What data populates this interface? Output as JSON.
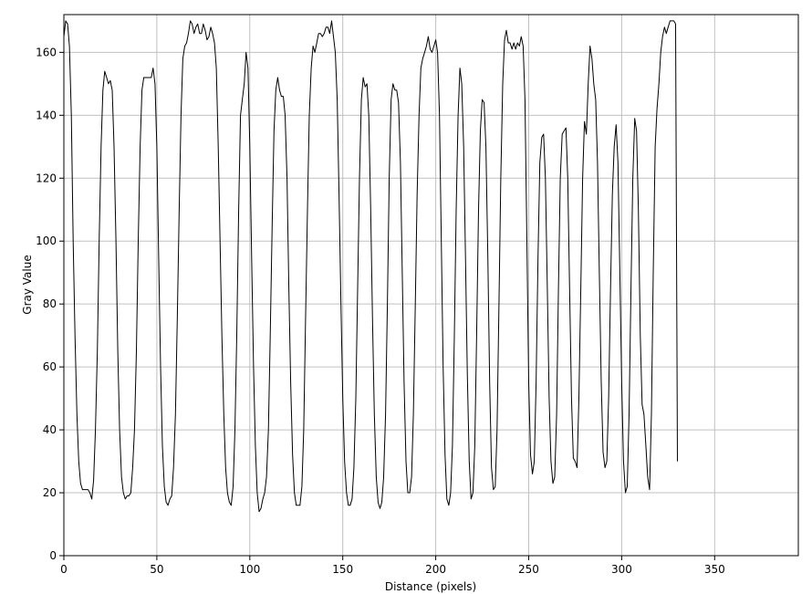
{
  "chart_data": {
    "type": "line",
    "title": "",
    "xlabel": "Distance (pixels)",
    "ylabel": "Gray Value",
    "xlim": [
      0,
      395
    ],
    "ylim": [
      0,
      172
    ],
    "xticks": [
      0,
      50,
      100,
      150,
      200,
      250,
      300,
      350
    ],
    "yticks": [
      0,
      20,
      40,
      60,
      80,
      100,
      120,
      140,
      160
    ],
    "grid": true,
    "colors": {
      "line": "#000000",
      "grid": "#c0c0c0",
      "frame": "#000000"
    },
    "series": [
      {
        "values": [
          [
            0,
            165
          ],
          [
            1,
            170
          ],
          [
            2,
            169
          ],
          [
            3,
            162
          ],
          [
            4,
            140
          ],
          [
            5,
            100
          ],
          [
            6,
            70
          ],
          [
            7,
            45
          ],
          [
            8,
            30
          ],
          [
            9,
            23
          ],
          [
            10,
            21
          ],
          [
            11,
            21
          ],
          [
            12,
            21
          ],
          [
            13,
            21
          ],
          [
            14,
            20
          ],
          [
            15,
            18
          ],
          [
            16,
            24
          ],
          [
            17,
            40
          ],
          [
            18,
            65
          ],
          [
            19,
            100
          ],
          [
            20,
            130
          ],
          [
            21,
            148
          ],
          [
            22,
            154
          ],
          [
            23,
            152
          ],
          [
            24,
            150
          ],
          [
            25,
            151
          ],
          [
            26,
            148
          ],
          [
            27,
            130
          ],
          [
            28,
            100
          ],
          [
            29,
            65
          ],
          [
            30,
            40
          ],
          [
            31,
            25
          ],
          [
            32,
            20
          ],
          [
            33,
            18
          ],
          [
            34,
            19
          ],
          [
            35,
            19
          ],
          [
            36,
            20
          ],
          [
            37,
            28
          ],
          [
            38,
            40
          ],
          [
            39,
            65
          ],
          [
            40,
            100
          ],
          [
            41,
            130
          ],
          [
            42,
            148
          ],
          [
            43,
            152
          ],
          [
            44,
            152
          ],
          [
            45,
            152
          ],
          [
            46,
            152
          ],
          [
            47,
            152
          ],
          [
            48,
            155
          ],
          [
            49,
            150
          ],
          [
            50,
            130
          ],
          [
            51,
            95
          ],
          [
            52,
            60
          ],
          [
            53,
            35
          ],
          [
            54,
            22
          ],
          [
            55,
            17
          ],
          [
            56,
            16
          ],
          [
            57,
            18
          ],
          [
            58,
            19
          ],
          [
            59,
            28
          ],
          [
            60,
            45
          ],
          [
            61,
            75
          ],
          [
            62,
            110
          ],
          [
            63,
            140
          ],
          [
            64,
            158
          ],
          [
            65,
            162
          ],
          [
            66,
            163
          ],
          [
            67,
            166
          ],
          [
            68,
            170
          ],
          [
            69,
            169
          ],
          [
            70,
            166
          ],
          [
            71,
            168
          ],
          [
            72,
            169
          ],
          [
            73,
            166
          ],
          [
            74,
            166
          ],
          [
            75,
            169
          ],
          [
            76,
            167
          ],
          [
            77,
            164
          ],
          [
            78,
            165
          ],
          [
            79,
            168
          ],
          [
            80,
            166
          ],
          [
            81,
            163
          ],
          [
            82,
            155
          ],
          [
            83,
            130
          ],
          [
            84,
            100
          ],
          [
            85,
            70
          ],
          [
            86,
            45
          ],
          [
            87,
            28
          ],
          [
            88,
            20
          ],
          [
            89,
            17
          ],
          [
            90,
            16
          ],
          [
            91,
            22
          ],
          [
            92,
            40
          ],
          [
            93,
            70
          ],
          [
            94,
            110
          ],
          [
            95,
            140
          ],
          [
            96,
            145
          ],
          [
            97,
            150
          ],
          [
            98,
            160
          ],
          [
            99,
            155
          ],
          [
            100,
            130
          ],
          [
            101,
            95
          ],
          [
            102,
            60
          ],
          [
            103,
            35
          ],
          [
            104,
            20
          ],
          [
            105,
            14
          ],
          [
            106,
            15
          ],
          [
            107,
            18
          ],
          [
            108,
            20
          ],
          [
            109,
            25
          ],
          [
            110,
            40
          ],
          [
            111,
            70
          ],
          [
            112,
            105
          ],
          [
            113,
            135
          ],
          [
            114,
            148
          ],
          [
            115,
            152
          ],
          [
            116,
            148
          ],
          [
            117,
            146
          ],
          [
            118,
            146
          ],
          [
            119,
            140
          ],
          [
            120,
            120
          ],
          [
            121,
            85
          ],
          [
            122,
            55
          ],
          [
            123,
            32
          ],
          [
            124,
            20
          ],
          [
            125,
            16
          ],
          [
            126,
            16
          ],
          [
            127,
            16
          ],
          [
            128,
            22
          ],
          [
            129,
            40
          ],
          [
            130,
            75
          ],
          [
            131,
            110
          ],
          [
            132,
            140
          ],
          [
            133,
            155
          ],
          [
            134,
            162
          ],
          [
            135,
            160
          ],
          [
            136,
            163
          ],
          [
            137,
            166
          ],
          [
            138,
            166
          ],
          [
            139,
            165
          ],
          [
            140,
            166
          ],
          [
            141,
            168
          ],
          [
            142,
            168
          ],
          [
            143,
            166
          ],
          [
            144,
            170
          ],
          [
            145,
            165
          ],
          [
            146,
            160
          ],
          [
            147,
            145
          ],
          [
            148,
            115
          ],
          [
            149,
            80
          ],
          [
            150,
            50
          ],
          [
            151,
            30
          ],
          [
            152,
            20
          ],
          [
            153,
            16
          ],
          [
            154,
            16
          ],
          [
            155,
            18
          ],
          [
            156,
            28
          ],
          [
            157,
            50
          ],
          [
            158,
            85
          ],
          [
            159,
            120
          ],
          [
            160,
            145
          ],
          [
            161,
            152
          ],
          [
            162,
            149
          ],
          [
            163,
            150
          ],
          [
            164,
            140
          ],
          [
            165,
            110
          ],
          [
            166,
            75
          ],
          [
            167,
            45
          ],
          [
            168,
            25
          ],
          [
            169,
            17
          ],
          [
            170,
            15
          ],
          [
            171,
            17
          ],
          [
            172,
            25
          ],
          [
            173,
            45
          ],
          [
            174,
            80
          ],
          [
            175,
            120
          ],
          [
            176,
            145
          ],
          [
            177,
            150
          ],
          [
            178,
            148
          ],
          [
            179,
            148
          ],
          [
            180,
            144
          ],
          [
            181,
            125
          ],
          [
            182,
            90
          ],
          [
            183,
            55
          ],
          [
            184,
            30
          ],
          [
            185,
            20
          ],
          [
            186,
            20
          ],
          [
            187,
            25
          ],
          [
            188,
            45
          ],
          [
            189,
            80
          ],
          [
            190,
            115
          ],
          [
            191,
            140
          ],
          [
            192,
            155
          ],
          [
            193,
            158
          ],
          [
            194,
            160
          ],
          [
            195,
            162
          ],
          [
            196,
            165
          ],
          [
            197,
            161
          ],
          [
            198,
            160
          ],
          [
            199,
            162
          ],
          [
            200,
            164
          ],
          [
            201,
            160
          ],
          [
            202,
            140
          ],
          [
            203,
            100
          ],
          [
            204,
            60
          ],
          [
            205,
            32
          ],
          [
            206,
            18
          ],
          [
            207,
            16
          ],
          [
            208,
            20
          ],
          [
            209,
            35
          ],
          [
            210,
            70
          ],
          [
            211,
            110
          ],
          [
            212,
            140
          ],
          [
            213,
            155
          ],
          [
            214,
            150
          ],
          [
            215,
            130
          ],
          [
            216,
            95
          ],
          [
            217,
            58
          ],
          [
            218,
            30
          ],
          [
            219,
            18
          ],
          [
            220,
            20
          ],
          [
            221,
            35
          ],
          [
            222,
            70
          ],
          [
            223,
            110
          ],
          [
            224,
            135
          ],
          [
            225,
            145
          ],
          [
            226,
            144
          ],
          [
            227,
            130
          ],
          [
            228,
            95
          ],
          [
            229,
            55
          ],
          [
            230,
            28
          ],
          [
            231,
            21
          ],
          [
            232,
            22
          ],
          [
            233,
            40
          ],
          [
            234,
            80
          ],
          [
            235,
            120
          ],
          [
            236,
            150
          ],
          [
            237,
            164
          ],
          [
            238,
            167
          ],
          [
            239,
            163
          ],
          [
            240,
            163
          ],
          [
            241,
            161
          ],
          [
            242,
            163
          ],
          [
            243,
            161
          ],
          [
            244,
            163
          ],
          [
            245,
            162
          ],
          [
            246,
            165
          ],
          [
            247,
            162
          ],
          [
            248,
            145
          ],
          [
            249,
            100
          ],
          [
            250,
            55
          ],
          [
            251,
            32
          ],
          [
            252,
            26
          ],
          [
            253,
            30
          ],
          [
            254,
            55
          ],
          [
            255,
            95
          ],
          [
            256,
            125
          ],
          [
            257,
            133
          ],
          [
            258,
            134
          ],
          [
            259,
            120
          ],
          [
            260,
            85
          ],
          [
            261,
            50
          ],
          [
            262,
            30
          ],
          [
            263,
            23
          ],
          [
            264,
            25
          ],
          [
            265,
            45
          ],
          [
            266,
            85
          ],
          [
            267,
            120
          ],
          [
            268,
            134
          ],
          [
            269,
            135
          ],
          [
            270,
            136
          ],
          [
            271,
            120
          ],
          [
            272,
            85
          ],
          [
            273,
            50
          ],
          [
            274,
            31
          ],
          [
            275,
            30
          ],
          [
            276,
            28
          ],
          [
            277,
            50
          ],
          [
            278,
            85
          ],
          [
            279,
            120
          ],
          [
            280,
            138
          ],
          [
            281,
            134
          ],
          [
            282,
            150
          ],
          [
            283,
            162
          ],
          [
            284,
            158
          ],
          [
            285,
            150
          ],
          [
            286,
            145
          ],
          [
            287,
            125
          ],
          [
            288,
            90
          ],
          [
            289,
            55
          ],
          [
            290,
            33
          ],
          [
            291,
            28
          ],
          [
            292,
            30
          ],
          [
            293,
            50
          ],
          [
            294,
            85
          ],
          [
            295,
            115
          ],
          [
            296,
            130
          ],
          [
            297,
            137
          ],
          [
            298,
            125
          ],
          [
            299,
            90
          ],
          [
            300,
            55
          ],
          [
            301,
            30
          ],
          [
            302,
            20
          ],
          [
            303,
            22
          ],
          [
            304,
            45
          ],
          [
            305,
            85
          ],
          [
            306,
            120
          ],
          [
            307,
            139
          ],
          [
            308,
            135
          ],
          [
            309,
            110
          ],
          [
            310,
            70
          ],
          [
            311,
            48
          ],
          [
            312,
            45
          ],
          [
            313,
            35
          ],
          [
            314,
            25
          ],
          [
            315,
            21
          ],
          [
            316,
            45
          ],
          [
            317,
            90
          ],
          [
            318,
            130
          ],
          [
            319,
            142
          ],
          [
            320,
            150
          ],
          [
            321,
            160
          ],
          [
            322,
            165
          ],
          [
            323,
            168
          ],
          [
            324,
            166
          ],
          [
            325,
            168
          ],
          [
            326,
            170
          ],
          [
            327,
            170
          ],
          [
            328,
            170
          ],
          [
            329,
            169
          ],
          [
            330,
            30
          ]
        ]
      }
    ]
  }
}
